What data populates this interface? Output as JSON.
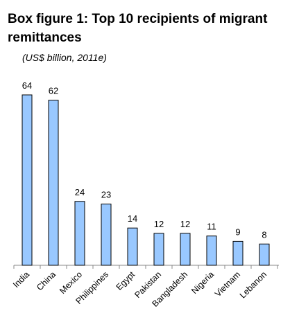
{
  "chart_data": {
    "type": "bar",
    "title": "Box figure 1: Top 10 recipients of migrant remittances",
    "subtitle": "(US$ billion, 2011e)",
    "categories": [
      "India",
      "China",
      "Mexico",
      "Philippines",
      "Egypt",
      "Pakistan",
      "Bangladesh",
      "Nigeria",
      "Vietnam",
      "Lebanon"
    ],
    "values": [
      64,
      62,
      24,
      23,
      14,
      12,
      12,
      11,
      9,
      8
    ],
    "ylim": [
      0,
      64
    ],
    "grid": false,
    "legend": "none",
    "colors": {
      "bar_fill": "#99c8ff",
      "bar_stroke": "#000000"
    }
  }
}
